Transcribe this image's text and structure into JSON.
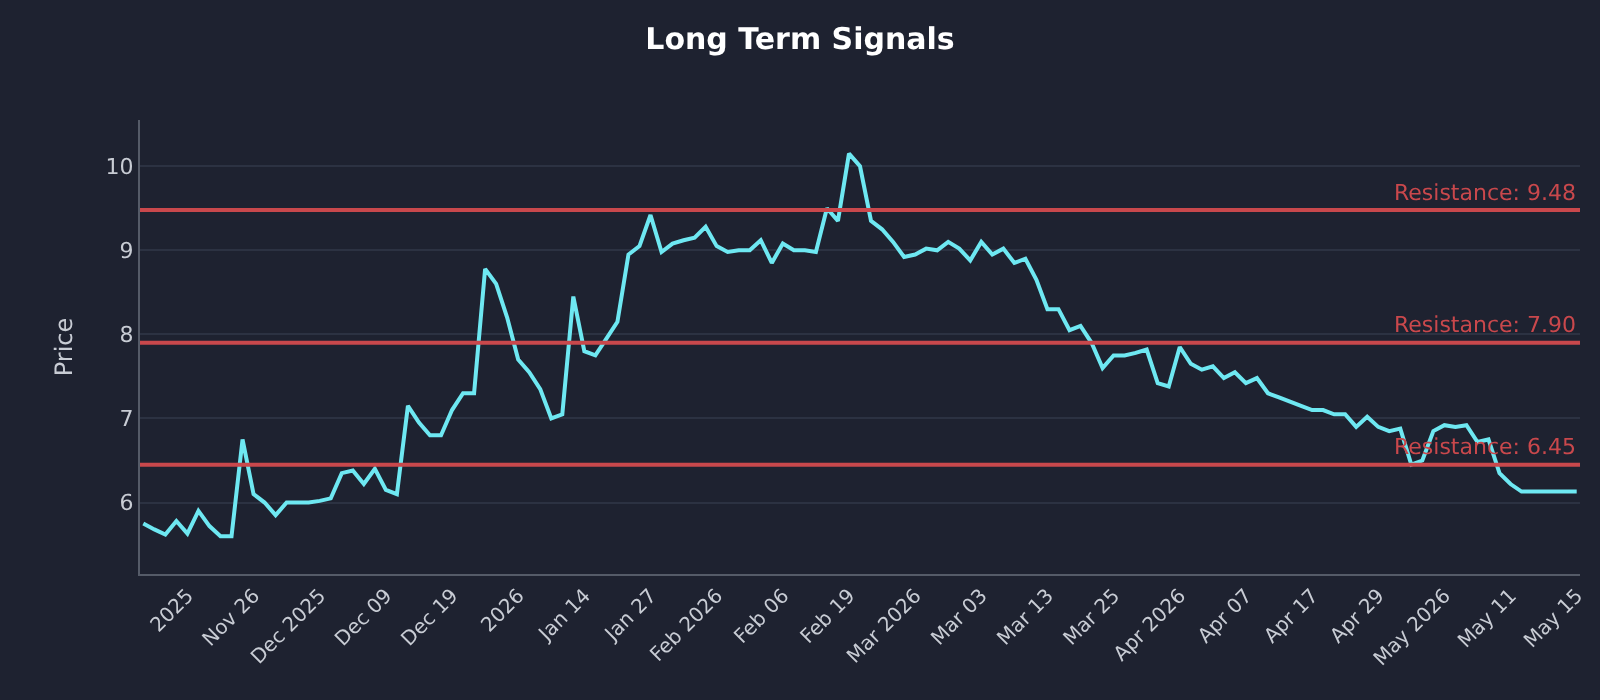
{
  "chart_data": {
    "type": "line",
    "title": "Long Term Signals",
    "ylabel": "Price",
    "categories": [
      null,
      null,
      null,
      null,
      "2025",
      null,
      null,
      null,
      null,
      null,
      "Nov 26",
      null,
      null,
      null,
      null,
      null,
      "Dec 2025",
      null,
      null,
      null,
      null,
      null,
      "Dec 09",
      null,
      null,
      null,
      null,
      null,
      "Dec 19",
      null,
      null,
      null,
      null,
      null,
      "2026",
      null,
      null,
      null,
      null,
      null,
      "Jan 14",
      null,
      null,
      null,
      null,
      null,
      "Jan 27",
      null,
      null,
      null,
      null,
      null,
      "Feb 2026",
      null,
      null,
      null,
      null,
      null,
      "Feb 06",
      null,
      null,
      null,
      null,
      null,
      "Feb 19",
      null,
      null,
      null,
      null,
      null,
      "Mar 2026",
      null,
      null,
      null,
      null,
      null,
      "Mar 03",
      null,
      null,
      null,
      null,
      null,
      "Mar 13",
      null,
      null,
      null,
      null,
      null,
      "Mar 25",
      null,
      null,
      null,
      null,
      null,
      "Apr 2026",
      null,
      null,
      null,
      null,
      null,
      "Apr 07",
      null,
      null,
      null,
      null,
      null,
      "Apr 17",
      null,
      null,
      null,
      null,
      null,
      "Apr 29",
      null,
      null,
      null,
      null,
      null,
      "May 2026",
      null,
      null,
      null,
      null,
      null,
      "May 11",
      null,
      null,
      null,
      null,
      null,
      "May 15"
    ],
    "series": [
      {
        "color": "#6ee8f2",
        "values": [
          5.75,
          5.68,
          5.62,
          5.78,
          5.63,
          5.9,
          5.72,
          5.6,
          5.6,
          6.75,
          6.1,
          6.0,
          5.85,
          6.0,
          6.0,
          6.0,
          6.02,
          6.05,
          6.35,
          6.38,
          6.22,
          6.4,
          6.15,
          6.1,
          7.15,
          6.95,
          6.8,
          6.8,
          7.1,
          7.3,
          7.3,
          8.78,
          8.6,
          8.2,
          7.7,
          7.55,
          7.35,
          7.0,
          7.05,
          8.45,
          7.8,
          7.75,
          7.95,
          8.15,
          8.95,
          9.05,
          9.42,
          8.98,
          9.08,
          9.12,
          9.15,
          9.28,
          9.05,
          8.98,
          9.0,
          9.0,
          9.12,
          8.85,
          9.08,
          9.0,
          9.0,
          8.98,
          9.5,
          9.35,
          10.15,
          10.0,
          9.35,
          9.25,
          9.1,
          8.92,
          8.95,
          9.02,
          9.0,
          9.1,
          9.02,
          8.88,
          9.1,
          8.95,
          9.02,
          8.85,
          8.9,
          8.65,
          8.3,
          8.3,
          8.05,
          8.1,
          7.9,
          7.6,
          7.75,
          7.75,
          7.78,
          7.82,
          7.42,
          7.38,
          7.85,
          7.65,
          7.58,
          7.62,
          7.48,
          7.55,
          7.42,
          7.48,
          7.3,
          7.25,
          7.2,
          7.15,
          7.1,
          7.1,
          7.05,
          7.05,
          6.9,
          7.02,
          6.9,
          6.85,
          6.88,
          6.45,
          6.5,
          6.85,
          6.92,
          6.9,
          6.92,
          6.72,
          6.75,
          6.35,
          6.22,
          6.13,
          6.13,
          6.13,
          6.13,
          6.13,
          6.13
        ]
      }
    ],
    "ylim": [
      5.15,
      10.55
    ],
    "yticks": [
      6,
      7,
      8,
      9,
      10
    ],
    "grid": "y",
    "marker": "none",
    "line_style": "solid",
    "ref_lines": [
      {
        "axis": "y",
        "value": 9.48,
        "label": "Resistance: 9.48",
        "color": "#c9484c"
      },
      {
        "axis": "y",
        "value": 7.9,
        "label": "Resistance: 7.90",
        "color": "#c9484c"
      },
      {
        "axis": "y",
        "value": 6.45,
        "label": "Resistance: 6.45",
        "color": "#c9484c"
      }
    ]
  }
}
